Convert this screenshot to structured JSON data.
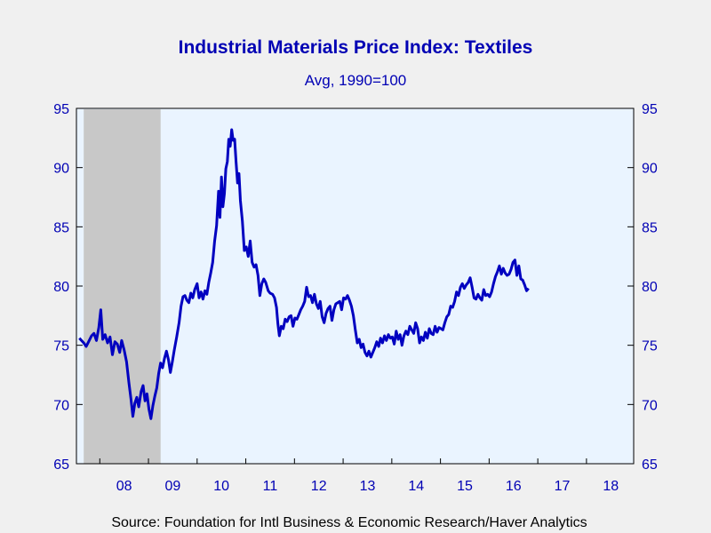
{
  "chart_data": {
    "type": "line",
    "title": "Industrial Materials Price Index: Textiles",
    "subtitle": "Avg, 1990=100",
    "source": "Source:  Foundation for Intl Business & Economic Research/Haver Analytics",
    "xlabel": "",
    "ylabel": "",
    "ylim": [
      65,
      95
    ],
    "y_ticks": [
      "65",
      "70",
      "75",
      "80",
      "85",
      "90",
      "95"
    ],
    "x_range": [
      2007.52,
      2018.97
    ],
    "x_ticks": [
      {
        "label": "08",
        "year": 2008
      },
      {
        "label": "09",
        "year": 2009
      },
      {
        "label": "10",
        "year": 2010
      },
      {
        "label": "11",
        "year": 2011
      },
      {
        "label": "12",
        "year": 2012
      },
      {
        "label": "13",
        "year": 2013
      },
      {
        "label": "14",
        "year": 2014
      },
      {
        "label": "15",
        "year": 2015
      },
      {
        "label": "16",
        "year": 2016
      },
      {
        "label": "17",
        "year": 2017
      },
      {
        "label": "18",
        "year": 2018
      }
    ],
    "recession": {
      "start": 2007.67,
      "end": 2009.25
    },
    "grid": false,
    "legend": "none",
    "axes": "left and right",
    "colors": {
      "line": "#0000c0",
      "text": "#0000b4",
      "recession": "#c8c8c8",
      "plot_bg": "#eaf4ff",
      "page_bg": "#f0f0f0"
    },
    "series": [
      {
        "points": [
          [
            2007.58,
            75.6
          ],
          [
            2007.67,
            75.2
          ],
          [
            2007.72,
            74.9
          ],
          [
            2007.77,
            75.3
          ],
          [
            2007.83,
            75.8
          ],
          [
            2007.88,
            76.0
          ],
          [
            2007.93,
            75.4
          ],
          [
            2007.98,
            76.5
          ],
          [
            2008.02,
            78.0
          ],
          [
            2008.06,
            75.5
          ],
          [
            2008.11,
            75.9
          ],
          [
            2008.16,
            75.2
          ],
          [
            2008.21,
            75.7
          ],
          [
            2008.26,
            74.2
          ],
          [
            2008.31,
            75.3
          ],
          [
            2008.36,
            75.1
          ],
          [
            2008.41,
            74.4
          ],
          [
            2008.45,
            75.4
          ],
          [
            2008.5,
            74.6
          ],
          [
            2008.55,
            73.6
          ],
          [
            2008.6,
            71.8
          ],
          [
            2008.64,
            70.5
          ],
          [
            2008.68,
            69.0
          ],
          [
            2008.72,
            70.1
          ],
          [
            2008.76,
            70.6
          ],
          [
            2008.8,
            69.8
          ],
          [
            2008.85,
            71.1
          ],
          [
            2008.89,
            71.6
          ],
          [
            2008.93,
            70.3
          ],
          [
            2008.97,
            70.9
          ],
          [
            2009.01,
            69.6
          ],
          [
            2009.05,
            68.8
          ],
          [
            2009.09,
            69.9
          ],
          [
            2009.13,
            70.7
          ],
          [
            2009.17,
            71.4
          ],
          [
            2009.21,
            72.6
          ],
          [
            2009.25,
            73.5
          ],
          [
            2009.29,
            73.1
          ],
          [
            2009.33,
            73.9
          ],
          [
            2009.37,
            74.5
          ],
          [
            2009.41,
            73.8
          ],
          [
            2009.45,
            72.7
          ],
          [
            2009.49,
            73.6
          ],
          [
            2009.53,
            74.6
          ],
          [
            2009.58,
            75.7
          ],
          [
            2009.63,
            76.9
          ],
          [
            2009.67,
            78.3
          ],
          [
            2009.71,
            79.1
          ],
          [
            2009.75,
            79.2
          ],
          [
            2009.79,
            78.8
          ],
          [
            2009.83,
            78.6
          ],
          [
            2009.87,
            79.4
          ],
          [
            2009.91,
            79.0
          ],
          [
            2009.95,
            79.7
          ],
          [
            2010.0,
            80.2
          ],
          [
            2010.04,
            79.0
          ],
          [
            2010.08,
            79.5
          ],
          [
            2010.12,
            78.9
          ],
          [
            2010.16,
            79.6
          ],
          [
            2010.2,
            79.3
          ],
          [
            2010.24,
            80.3
          ],
          [
            2010.28,
            81.1
          ],
          [
            2010.32,
            82.0
          ],
          [
            2010.36,
            83.8
          ],
          [
            2010.4,
            85.1
          ],
          [
            2010.44,
            88.0
          ],
          [
            2010.47,
            85.8
          ],
          [
            2010.5,
            89.2
          ],
          [
            2010.53,
            86.7
          ],
          [
            2010.56,
            87.8
          ],
          [
            2010.59,
            89.9
          ],
          [
            2010.62,
            90.5
          ],
          [
            2010.65,
            92.4
          ],
          [
            2010.68,
            91.8
          ],
          [
            2010.71,
            93.2
          ],
          [
            2010.74,
            92.3
          ],
          [
            2010.77,
            92.4
          ],
          [
            2010.8,
            90.5
          ],
          [
            2010.83,
            88.7
          ],
          [
            2010.86,
            89.5
          ],
          [
            2010.89,
            87.2
          ],
          [
            2010.93,
            85.5
          ],
          [
            2010.97,
            83.0
          ],
          [
            2011.01,
            83.3
          ],
          [
            2011.05,
            82.5
          ],
          [
            2011.09,
            83.8
          ],
          [
            2011.13,
            82.0
          ],
          [
            2011.17,
            81.6
          ],
          [
            2011.21,
            81.8
          ],
          [
            2011.25,
            80.9
          ],
          [
            2011.29,
            79.2
          ],
          [
            2011.33,
            80.2
          ],
          [
            2011.37,
            80.6
          ],
          [
            2011.41,
            80.3
          ],
          [
            2011.46,
            79.6
          ],
          [
            2011.5,
            79.4
          ],
          [
            2011.55,
            79.3
          ],
          [
            2011.59,
            79.0
          ],
          [
            2011.63,
            78.2
          ],
          [
            2011.66,
            76.8
          ],
          [
            2011.69,
            75.8
          ],
          [
            2011.73,
            76.6
          ],
          [
            2011.77,
            76.4
          ],
          [
            2011.81,
            77.2
          ],
          [
            2011.85,
            77.0
          ],
          [
            2011.89,
            77.4
          ],
          [
            2011.93,
            77.5
          ],
          [
            2011.97,
            76.6
          ],
          [
            2012.01,
            77.3
          ],
          [
            2012.05,
            77.2
          ],
          [
            2012.09,
            77.6
          ],
          [
            2012.13,
            78.0
          ],
          [
            2012.17,
            78.3
          ],
          [
            2012.21,
            78.7
          ],
          [
            2012.25,
            79.9
          ],
          [
            2012.29,
            79.1
          ],
          [
            2012.33,
            79.2
          ],
          [
            2012.37,
            78.6
          ],
          [
            2012.41,
            79.3
          ],
          [
            2012.45,
            78.5
          ],
          [
            2012.49,
            78.1
          ],
          [
            2012.53,
            78.7
          ],
          [
            2012.57,
            77.4
          ],
          [
            2012.61,
            76.9
          ],
          [
            2012.65,
            77.7
          ],
          [
            2012.69,
            78.1
          ],
          [
            2012.73,
            78.3
          ],
          [
            2012.77,
            77.1
          ],
          [
            2012.81,
            78.0
          ],
          [
            2012.85,
            78.5
          ],
          [
            2012.89,
            78.6
          ],
          [
            2012.93,
            78.7
          ],
          [
            2012.97,
            78.0
          ],
          [
            2013.01,
            79.0
          ],
          [
            2013.05,
            78.9
          ],
          [
            2013.09,
            79.2
          ],
          [
            2013.13,
            78.8
          ],
          [
            2013.17,
            78.3
          ],
          [
            2013.21,
            77.5
          ],
          [
            2013.25,
            76.3
          ],
          [
            2013.29,
            75.2
          ],
          [
            2013.33,
            75.5
          ],
          [
            2013.37,
            74.8
          ],
          [
            2013.41,
            75.1
          ],
          [
            2013.45,
            74.4
          ],
          [
            2013.49,
            74.1
          ],
          [
            2013.53,
            74.5
          ],
          [
            2013.57,
            74.0
          ],
          [
            2013.61,
            74.4
          ],
          [
            2013.65,
            74.8
          ],
          [
            2013.69,
            75.3
          ],
          [
            2013.73,
            74.9
          ],
          [
            2013.77,
            75.6
          ],
          [
            2013.81,
            75.2
          ],
          [
            2013.85,
            75.8
          ],
          [
            2013.89,
            75.4
          ],
          [
            2013.93,
            75.9
          ],
          [
            2013.97,
            75.6
          ],
          [
            2014.01,
            75.7
          ],
          [
            2014.05,
            75.1
          ],
          [
            2014.09,
            76.2
          ],
          [
            2014.13,
            75.5
          ],
          [
            2014.17,
            75.9
          ],
          [
            2014.21,
            75.0
          ],
          [
            2014.25,
            75.8
          ],
          [
            2014.29,
            76.2
          ],
          [
            2014.33,
            75.9
          ],
          [
            2014.37,
            76.6
          ],
          [
            2014.41,
            76.3
          ],
          [
            2014.45,
            76.0
          ],
          [
            2014.49,
            76.9
          ],
          [
            2014.53,
            76.4
          ],
          [
            2014.57,
            75.2
          ],
          [
            2014.61,
            75.7
          ],
          [
            2014.65,
            75.4
          ],
          [
            2014.69,
            76.1
          ],
          [
            2014.73,
            75.6
          ],
          [
            2014.77,
            76.4
          ],
          [
            2014.81,
            76.0
          ],
          [
            2014.85,
            75.9
          ],
          [
            2014.89,
            76.6
          ],
          [
            2014.93,
            76.1
          ],
          [
            2014.97,
            76.5
          ],
          [
            2015.01,
            76.4
          ],
          [
            2015.05,
            76.3
          ],
          [
            2015.09,
            76.9
          ],
          [
            2015.13,
            77.4
          ],
          [
            2015.17,
            77.6
          ],
          [
            2015.21,
            78.3
          ],
          [
            2015.25,
            78.2
          ],
          [
            2015.29,
            78.7
          ],
          [
            2015.33,
            79.5
          ],
          [
            2015.37,
            79.2
          ],
          [
            2015.41,
            79.9
          ],
          [
            2015.45,
            80.2
          ],
          [
            2015.49,
            79.8
          ],
          [
            2015.53,
            80.1
          ],
          [
            2015.57,
            80.3
          ],
          [
            2015.61,
            80.7
          ],
          [
            2015.65,
            79.9
          ],
          [
            2015.69,
            79.0
          ],
          [
            2015.73,
            78.9
          ],
          [
            2015.77,
            79.3
          ],
          [
            2015.81,
            79.0
          ],
          [
            2015.85,
            78.8
          ],
          [
            2015.89,
            79.7
          ],
          [
            2015.93,
            79.2
          ],
          [
            2015.97,
            79.3
          ],
          [
            2016.01,
            79.1
          ],
          [
            2016.05,
            79.5
          ],
          [
            2016.09,
            80.2
          ],
          [
            2016.13,
            80.8
          ],
          [
            2016.17,
            81.2
          ],
          [
            2016.21,
            81.7
          ],
          [
            2016.25,
            81.0
          ],
          [
            2016.29,
            81.5
          ],
          [
            2016.33,
            81.1
          ],
          [
            2016.37,
            80.9
          ],
          [
            2016.41,
            81.0
          ],
          [
            2016.45,
            81.4
          ],
          [
            2016.49,
            82.0
          ],
          [
            2016.53,
            82.2
          ],
          [
            2016.57,
            80.9
          ],
          [
            2016.61,
            81.7
          ],
          [
            2016.65,
            80.6
          ],
          [
            2016.69,
            80.5
          ],
          [
            2016.73,
            80.1
          ],
          [
            2016.77,
            79.6
          ],
          [
            2016.81,
            79.8
          ]
        ]
      }
    ]
  }
}
